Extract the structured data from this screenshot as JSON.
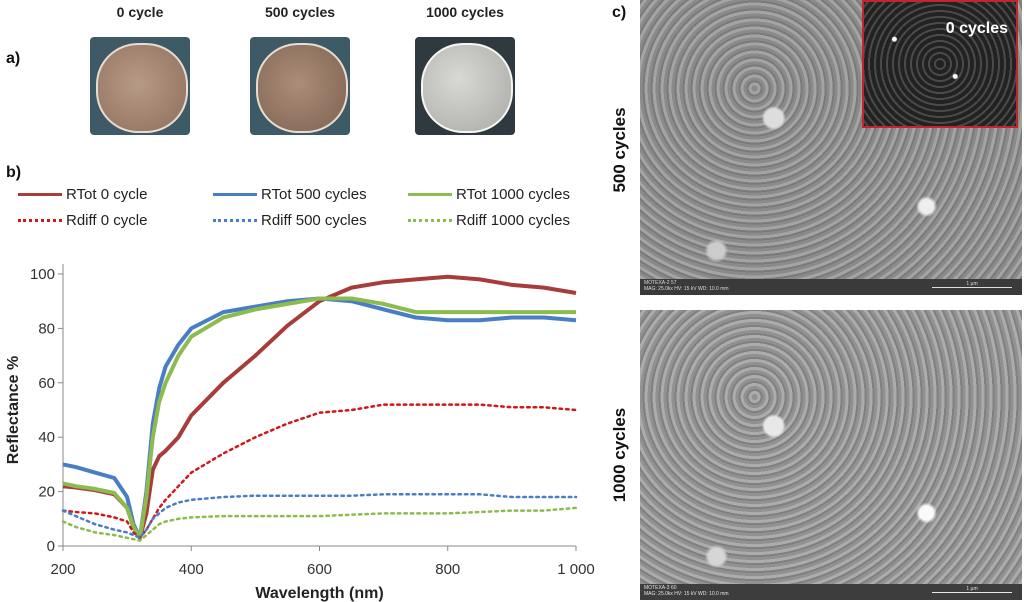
{
  "panel_a": {
    "label": "a)",
    "photos": [
      {
        "caption": "0 cycle"
      },
      {
        "caption": "500 cycles"
      },
      {
        "caption": "1000 cycles"
      }
    ]
  },
  "panel_b": {
    "label": "b)"
  },
  "panel_c": {
    "label": "c)",
    "inset_label": "0 cycles",
    "sem": [
      {
        "label": "500 cycles",
        "meta1": "MOTEXA-2 57",
        "meta2": "MAG: 25.0kx   HV: 15 kV   WD: 10.0 mm",
        "scale": "1 µm"
      },
      {
        "label": "1000 cycles",
        "meta1": "MOTEXA-3 60",
        "meta2": "MAG: 25.0kx   HV: 15 kV   WD: 10.0 mm",
        "scale": "1 µm"
      }
    ]
  },
  "colors": {
    "red": "#a83c3a",
    "blue": "#4a7ec4",
    "green": "#8cbb4e",
    "red_dot": "#d01818"
  },
  "chart_data": {
    "type": "line",
    "xlabel": "Wavelength (nm)",
    "ylabel": "Reflectance %",
    "xlim": [
      200,
      1000
    ],
    "ylim": [
      0,
      100
    ],
    "xticks": [
      "200",
      "400",
      "600",
      "800",
      "1 000"
    ],
    "yticks": [
      "0",
      "20",
      "40",
      "60",
      "80",
      "100"
    ],
    "legend_position": "top",
    "x": [
      200,
      220,
      250,
      280,
      300,
      310,
      320,
      330,
      340,
      350,
      360,
      380,
      400,
      450,
      500,
      550,
      600,
      650,
      700,
      750,
      800,
      850,
      900,
      950,
      1000
    ],
    "series": [
      {
        "name": "RTot 0 cycle",
        "style": "solid",
        "color": "#a83c3a",
        "values": [
          22,
          21.5,
          20.5,
          19,
          14,
          7,
          3,
          12,
          28,
          33,
          35,
          40,
          48,
          60,
          70,
          81,
          90,
          95,
          97,
          98,
          99,
          98,
          96,
          95,
          93
        ]
      },
      {
        "name": "RTot 500 cycles",
        "style": "solid",
        "color": "#4a7ec4",
        "values": [
          30,
          29,
          27,
          25,
          18,
          8,
          3,
          20,
          45,
          58,
          66,
          74,
          80,
          86,
          88,
          90,
          91,
          90,
          87,
          84,
          83,
          83,
          84,
          84,
          83
        ]
      },
      {
        "name": "RTot 1000 cycles",
        "style": "solid",
        "color": "#8cbb4e",
        "values": [
          23,
          22,
          21,
          19.5,
          14,
          7,
          3,
          18,
          40,
          53,
          60,
          70,
          77,
          84,
          87,
          89,
          91,
          91,
          89,
          86,
          86,
          86,
          86,
          86,
          86
        ]
      },
      {
        "name": "Rdiff 0 cycle",
        "style": "dotted",
        "color": "#d01818",
        "values": [
          13,
          12.5,
          12,
          10.5,
          9,
          5,
          3,
          6,
          10,
          14,
          17,
          22,
          27,
          34,
          40,
          45,
          49,
          50,
          52,
          52,
          52,
          52,
          51,
          51,
          50
        ]
      },
      {
        "name": "Rdiff 500 cycles",
        "style": "dotted",
        "color": "#4a7ec4",
        "values": [
          13,
          11,
          8,
          6,
          5,
          4,
          3,
          6,
          10,
          12,
          14,
          16,
          17,
          18,
          18.5,
          18.5,
          18.5,
          18.5,
          19,
          19,
          19,
          19,
          18,
          18,
          18
        ]
      },
      {
        "name": "Rdiff 1000 cycles",
        "style": "dotted",
        "color": "#8cbb4e",
        "values": [
          9,
          7,
          5,
          4,
          3,
          2.5,
          2,
          4,
          6,
          8,
          9,
          10,
          10.5,
          11,
          11,
          11,
          11,
          11.5,
          12,
          12,
          12,
          12.5,
          13,
          13,
          14
        ]
      }
    ]
  }
}
